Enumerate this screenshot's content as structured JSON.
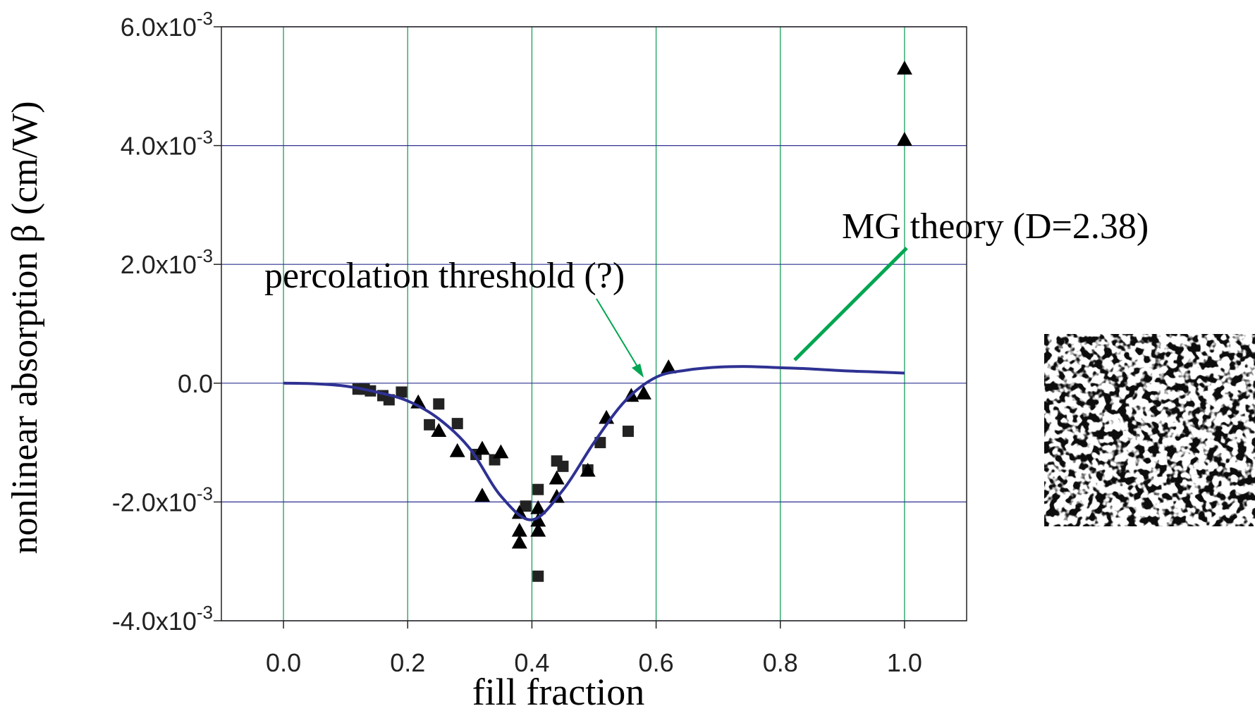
{
  "chart_data": {
    "type": "scatter",
    "x_label": "fill fraction",
    "y_label": "nonlinear absorption β (cm/W)",
    "xlim": [
      -0.1,
      1.1
    ],
    "xticks": [
      {
        "value": 0,
        "label": "0.0"
      },
      0.2,
      0.4,
      0.6,
      0.8,
      {
        "value": 1,
        "label": "1.0"
      }
    ],
    "ylim": [
      -0.004,
      0.006
    ],
    "yticks": [
      {
        "value": -0.004,
        "label": "-4.0x10",
        "exponent": "-3"
      },
      {
        "value": -0.002,
        "label": "-2.0x10",
        "exponent": "-3"
      },
      {
        "value": 0,
        "label": "0.0"
      },
      {
        "value": 0.002,
        "label": "2.0x10",
        "exponent": "-3"
      },
      {
        "value": 0.004,
        "label": "4.0x10",
        "exponent": "-3"
      },
      {
        "value": 0.006,
        "label": "6.0x10",
        "exponent": "-3"
      }
    ],
    "grid": true,
    "x_grid_color": "#1aa05a",
    "y_grid_color": "#2e3192",
    "series": [
      {
        "marker": "square",
        "color": "#222222",
        "x": [
          0.12,
          0.13,
          0.14,
          0.16,
          0.17,
          0.19,
          0.235,
          0.25,
          0.28,
          0.31,
          0.34,
          0.39,
          0.41,
          0.41,
          0.44,
          0.45,
          0.49,
          0.51,
          0.555
        ],
        "values": [
          -0.0001,
          -0.0001,
          -0.00013,
          -0.00021,
          -0.00028,
          -0.00015,
          -0.0007,
          -0.00035,
          -0.00068,
          -0.0012,
          -0.00129,
          -0.00207,
          -0.00179,
          -0.00325,
          -0.00131,
          -0.0014,
          -0.00146,
          -0.001,
          -0.00081
        ]
      },
      {
        "marker": "triangle",
        "color": "#000000",
        "x": [
          0.217,
          0.25,
          0.28,
          0.32,
          0.32,
          0.35,
          0.38,
          0.38,
          0.38,
          0.41,
          0.41,
          0.41,
          0.44,
          0.44,
          0.49,
          0.52,
          0.56,
          0.58,
          0.62,
          1.0,
          1.0
        ],
        "values": [
          -0.00032,
          -0.0008,
          -0.00114,
          -0.0011,
          -0.00189,
          -0.00116,
          -0.00248,
          -0.00268,
          -0.00218,
          -0.0021,
          -0.00231,
          -0.00248,
          -0.00191,
          -0.0016,
          -0.00147,
          -0.00058,
          -0.00021,
          -0.00017,
          0.00027,
          0.0053,
          0.0041
        ]
      },
      {
        "marker": "line",
        "color": "#2e3192",
        "x": [
          0,
          0.05,
          0.1,
          0.15,
          0.2,
          0.25,
          0.3,
          0.35,
          0.4,
          0.45,
          0.5,
          0.55,
          0.6,
          0.65,
          0.7,
          0.75,
          0.8,
          0.85,
          0.9,
          0.95,
          1.0
        ],
        "values": [
          0,
          -1e-05,
          -5e-05,
          -0.00015,
          -0.0003,
          -0.0006,
          -0.0011,
          -0.0019,
          -0.0023,
          -0.0018,
          -0.001,
          -0.0003,
          0.0001,
          0.00022,
          0.00027,
          0.00028,
          0.00026,
          0.00024,
          0.00021,
          0.00019,
          0.00017
        ]
      }
    ],
    "annotations": [
      "percolation threshold (?)",
      "MG theory (D=2.38)"
    ],
    "annotation_color": "#00a651"
  }
}
